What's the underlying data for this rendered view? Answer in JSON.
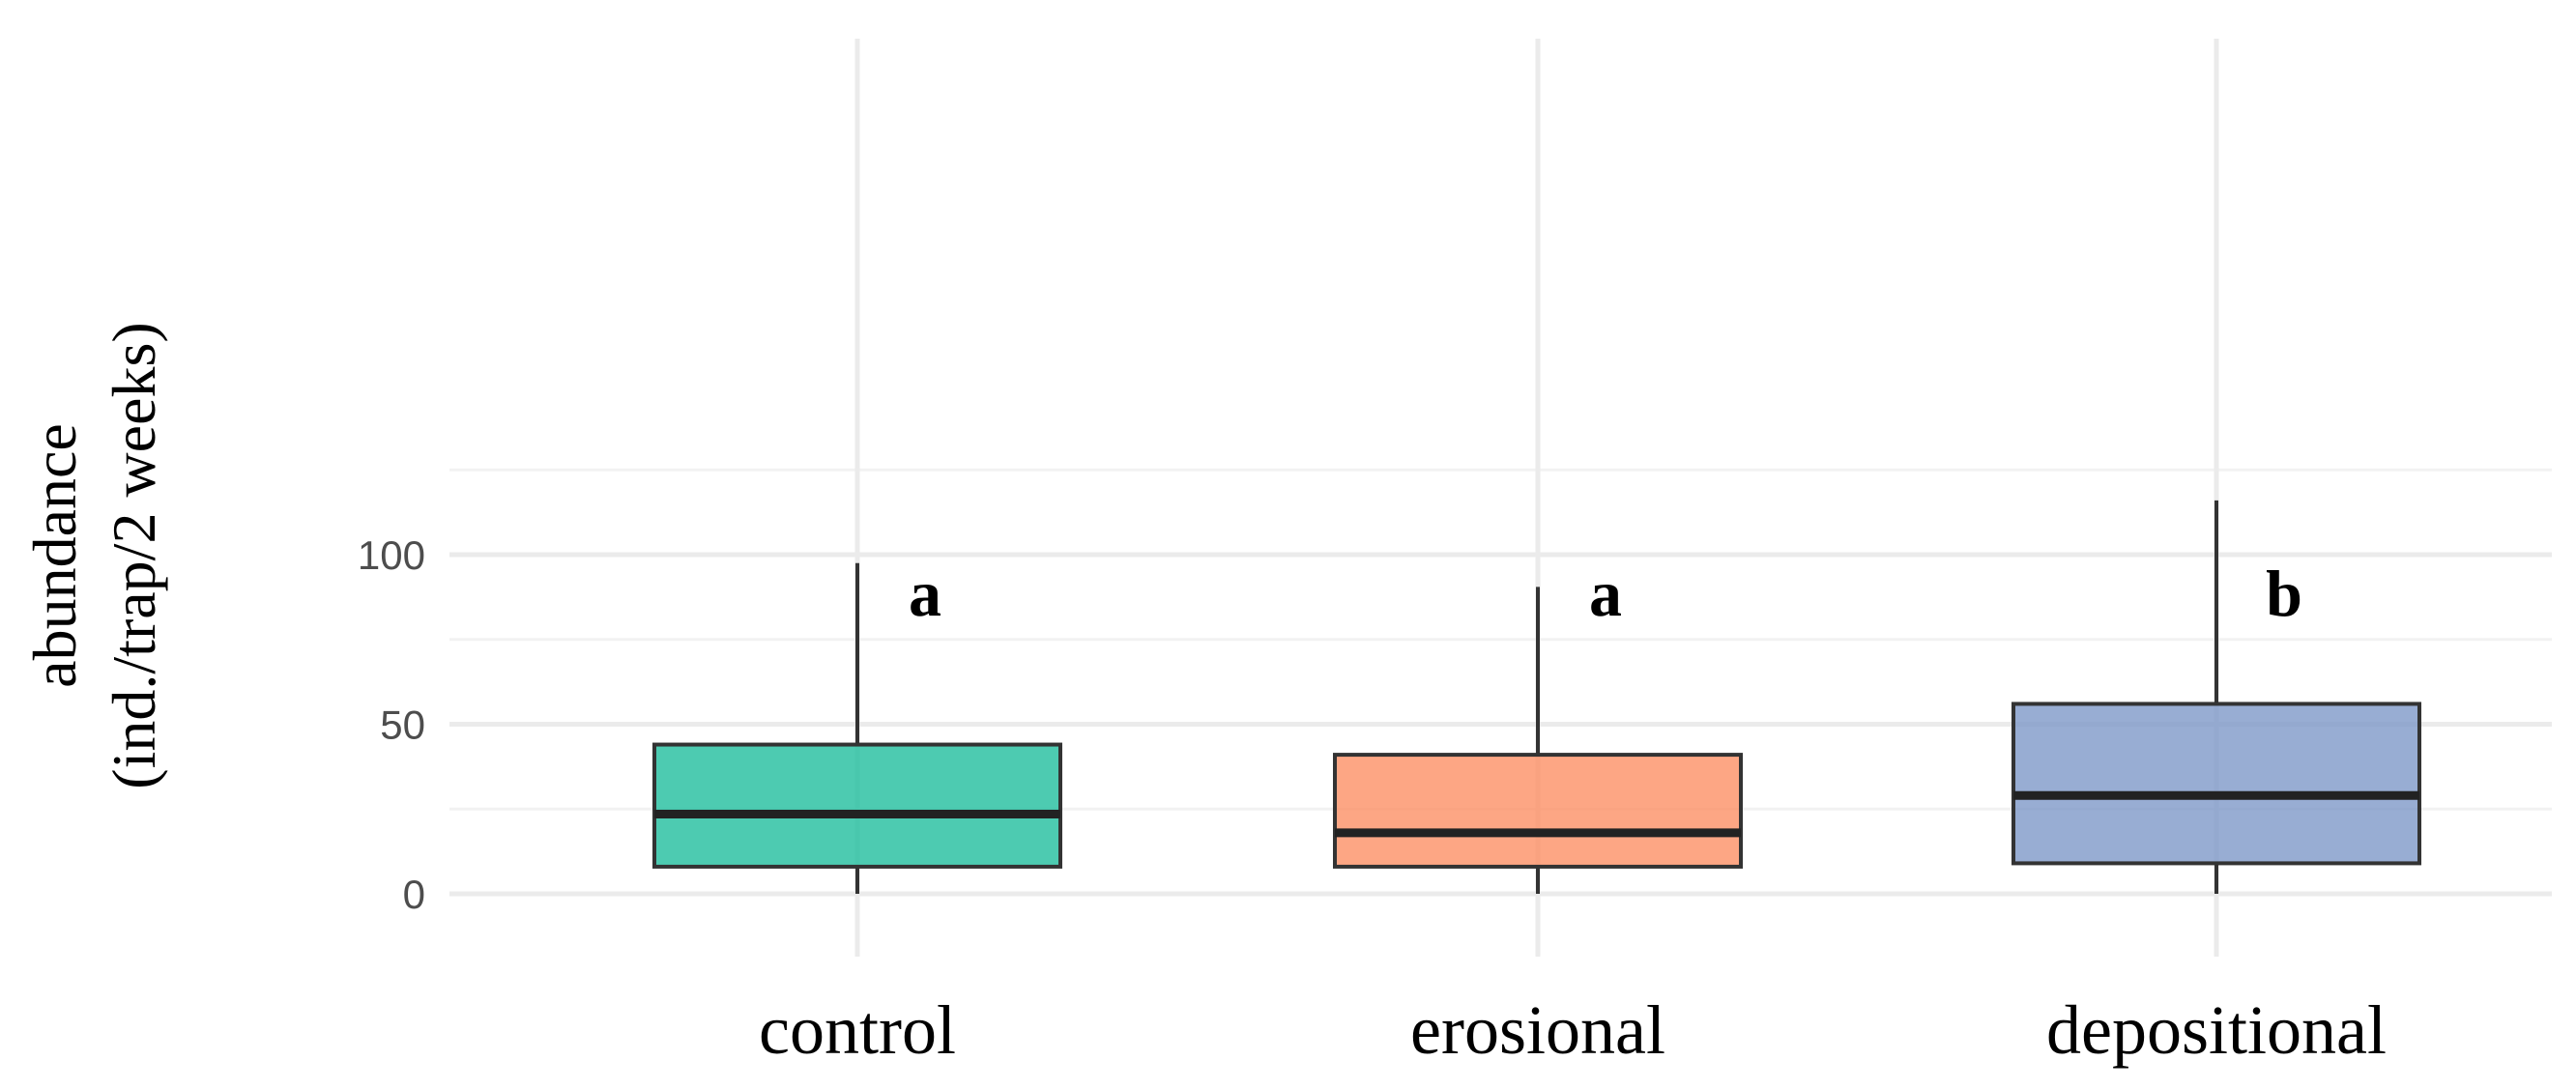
{
  "chart_data": {
    "type": "boxplot",
    "title": "",
    "xlabel": "",
    "ylabel": {
      "line1": "abundance",
      "line2": "(ind./trap/2 weeks)"
    },
    "ylim": [
      -8,
      126
    ],
    "yticks": [
      0,
      50,
      100
    ],
    "grid": true,
    "categories": [
      "control",
      "erosional",
      "depositional"
    ],
    "boxes": [
      {
        "category": "control",
        "min": 0,
        "q1": 8,
        "median": 23.5,
        "q3": 44,
        "max": 97.5,
        "color": "#1bbc9b",
        "letter": "a"
      },
      {
        "category": "erosional",
        "min": 0,
        "q1": 8,
        "median": 18,
        "q3": 41,
        "max": 90.5,
        "color": "#fc8d62",
        "letter": "a"
      },
      {
        "category": "depositional",
        "min": 0,
        "q1": 9,
        "median": 29,
        "q3": 56,
        "max": 116,
        "color": "#7b96c6",
        "letter": "b"
      }
    ]
  }
}
